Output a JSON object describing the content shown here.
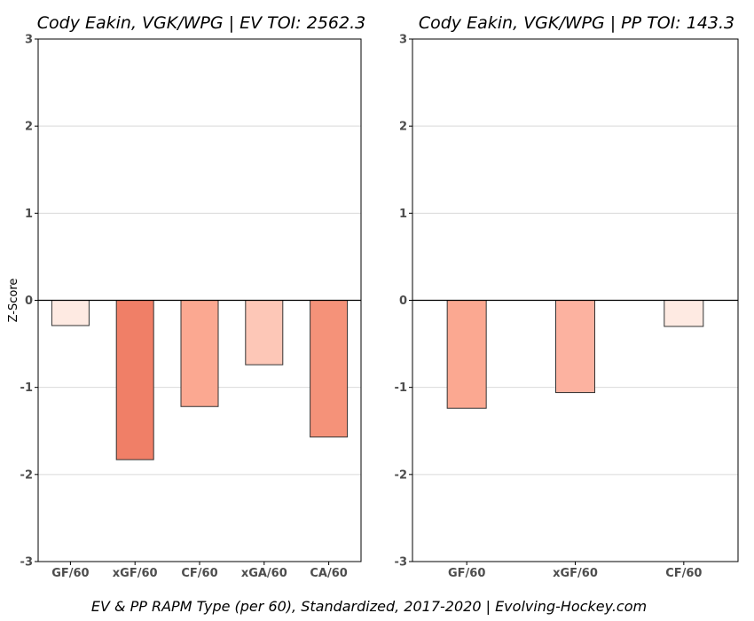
{
  "chart_data": [
    {
      "type": "bar",
      "title": "Cody Eakin, VGK/WPG  |  EV TOI: 2562.3",
      "ylabel": "Z-Score",
      "ylim": [
        -3,
        3
      ],
      "yticks": [
        3,
        2,
        1,
        0,
        -1,
        -2,
        -3
      ],
      "grid": true,
      "categories": [
        "GF/60",
        "xGF/60",
        "CF/60",
        "xGA/60",
        "CA/60"
      ],
      "values": [
        -0.29,
        -1.83,
        -1.22,
        -0.74,
        -1.57
      ],
      "colors": [
        "#feeae2",
        "#f07f67",
        "#fba891",
        "#fdc7b7",
        "#f59279"
      ]
    },
    {
      "type": "bar",
      "title": "Cody Eakin, VGK/WPG  |  PP TOI: 143.3",
      "ylabel": "",
      "ylim": [
        -3,
        3
      ],
      "yticks": [
        3,
        2,
        1,
        0,
        -1,
        -2,
        -3
      ],
      "grid": true,
      "categories": [
        "GF/60",
        "xGF/60",
        "CF/60"
      ],
      "values": [
        -1.24,
        -1.06,
        -0.3
      ],
      "colors": [
        "#fba891",
        "#fcb2a0",
        "#feeae2"
      ]
    }
  ],
  "caption": "EV & PP RAPM Type (per 60), Standardized, 2017-2020    |    Evolving-Hockey.com"
}
